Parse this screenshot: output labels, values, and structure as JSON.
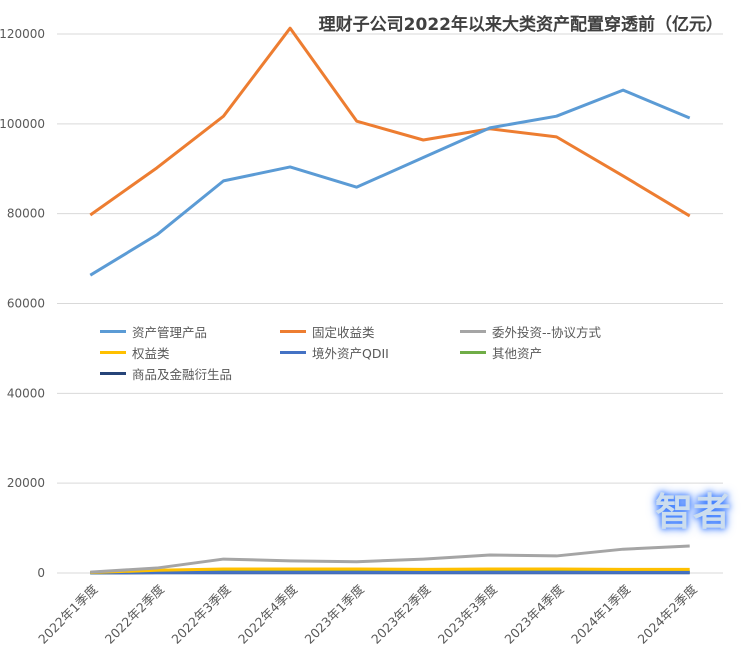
{
  "chart_data": {
    "type": "line",
    "title": "理财子公司2022年以来大类资产配置穿透前（亿元）",
    "categories": [
      "2022年1季度",
      "2022年2季度",
      "2022年3季度",
      "2022年4季度",
      "2023年1季度",
      "2023年2季度",
      "2023年3季度",
      "2023年4季度",
      "2024年1季度",
      "2024年2季度"
    ],
    "ylim": [
      0,
      120000
    ],
    "yticks": [
      0,
      20000,
      40000,
      60000,
      80000,
      100000,
      120000
    ],
    "grid": true,
    "legend_position": "middle-left",
    "series": [
      {
        "name": "资产管理产品",
        "color": "#5b9bd5",
        "values": [
          66300,
          75300,
          87300,
          90400,
          85900,
          92500,
          99100,
          101700,
          107500,
          101300
        ]
      },
      {
        "name": "固定收益类",
        "color": "#ed7d31",
        "values": [
          79700,
          90200,
          101700,
          121300,
          100600,
          96400,
          98900,
          97100,
          88400,
          79500
        ]
      },
      {
        "name": "委外投资--协议方式",
        "color": "#a5a5a5",
        "values": [
          200,
          1100,
          3100,
          2700,
          2500,
          3100,
          4000,
          3800,
          5300,
          6000
        ]
      },
      {
        "name": "权益类",
        "color": "#ffc000",
        "values": [
          100,
          600,
          900,
          900,
          900,
          800,
          900,
          900,
          800,
          800
        ]
      },
      {
        "name": "境外资产QDII",
        "color": "#4472c4",
        "values": [
          50,
          100,
          150,
          150,
          150,
          150,
          150,
          150,
          150,
          150
        ]
      },
      {
        "name": "其他资产",
        "color": "#70ad47",
        "values": [
          50,
          200,
          300,
          300,
          300,
          300,
          300,
          300,
          300,
          300
        ]
      },
      {
        "name": "商品及金融衍生品",
        "color": "#264478",
        "values": [
          20,
          50,
          50,
          50,
          50,
          50,
          50,
          50,
          50,
          50
        ]
      }
    ]
  },
  "watermark": "智者"
}
